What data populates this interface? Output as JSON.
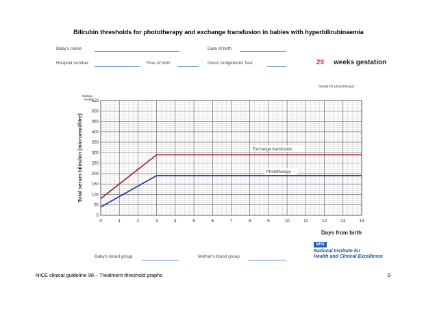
{
  "header": {
    "title": "Bilirubin thresholds for phototherapy and exchange transfusion in babies with hyperbilirubinaemia"
  },
  "form": {
    "babys_name_label": "Baby's name",
    "date_of_birth_label": "Date of birth",
    "hospital_number_label": "Hospital number",
    "time_of_birth_label": "Time of birth",
    "dat_label": "Direct Antiglobulin Test",
    "weeks_value": "29",
    "weeks_label": "weeks gestation",
    "babys_blood_group_label": "Baby's blood group",
    "mothers_blood_group_label": "Mother's blood group"
  },
  "legend": {
    "shade_label": "Shade for phototherapy",
    "multiple_simple": [
      "Multiple",
      "Simple"
    ]
  },
  "footer": {
    "left": "NICE clinical guideline 98 – Treatment threshold graphs",
    "page": "9"
  },
  "branding": {
    "nhs": "NHS",
    "nice_line1": "National Institute for",
    "nice_line2": "Health and Clinical Excellence"
  },
  "chart_data": {
    "type": "line",
    "xlabel": "Days from birth",
    "ylabel": "Total serum bilirubin (micromol/litre)",
    "xlim": [
      0,
      14
    ],
    "ylim": [
      0,
      550
    ],
    "x_ticks": [
      0,
      1,
      2,
      3,
      4,
      5,
      6,
      7,
      8,
      9,
      10,
      11,
      12,
      13,
      14
    ],
    "y_ticks": [
      0,
      50,
      100,
      150,
      200,
      250,
      300,
      350,
      400,
      450,
      500,
      550
    ],
    "grid": true,
    "colors": {
      "exchange": "#9b1c1c",
      "phototherapy": "#1f2a8c",
      "grid": "#555555",
      "grid_minor": "#b5b5b5"
    },
    "series": [
      {
        "name": "Exchange transfusion",
        "x": [
          0,
          3,
          14
        ],
        "y": [
          80,
          290,
          290
        ]
      },
      {
        "name": "Phototherapy",
        "x": [
          0,
          3,
          14
        ],
        "y": [
          40,
          190,
          190
        ]
      }
    ]
  }
}
